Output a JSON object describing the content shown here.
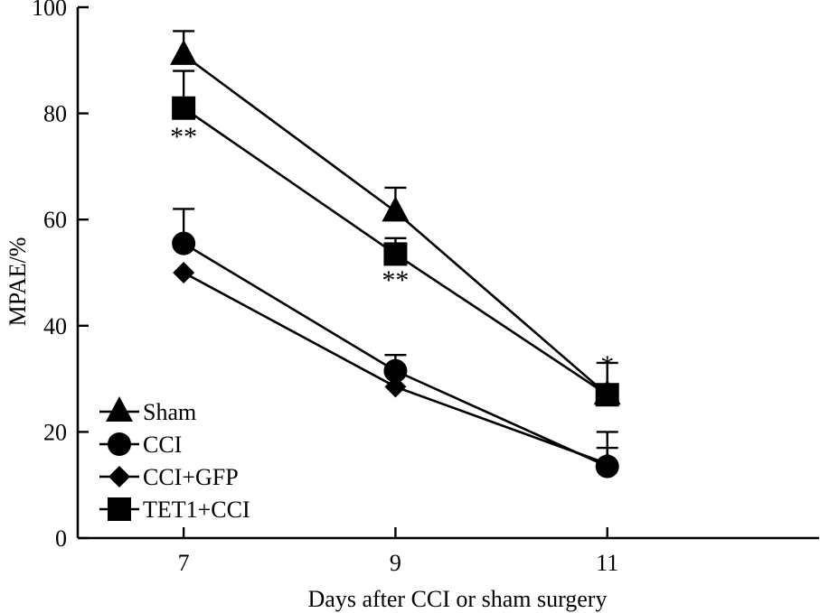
{
  "chart_data": {
    "type": "line",
    "title": "",
    "xlabel": "Days after CCI or sham surgery",
    "ylabel": "MPAE/%",
    "x": [
      7,
      9,
      11
    ],
    "x_tick_labels": [
      "7",
      "9",
      "11"
    ],
    "xlim": [
      6,
      13
    ],
    "ylim": [
      0,
      100
    ],
    "y_ticks": [
      0,
      20,
      40,
      60,
      80,
      100
    ],
    "y_tick_labels": [
      "0",
      "20",
      "40",
      "60",
      "80",
      "100"
    ],
    "grid": false,
    "legend_position": "bottom-left",
    "series": [
      {
        "name": "Sham",
        "marker": "triangle",
        "values": [
          91,
          61.5,
          27
        ],
        "error_upper": [
          4.5,
          4.5,
          0
        ]
      },
      {
        "name": "CCI",
        "marker": "circle",
        "values": [
          55.5,
          31.5,
          13.5
        ],
        "error_upper": [
          6.5,
          3,
          6.5
        ]
      },
      {
        "name": "CCI+GFP",
        "marker": "diamond",
        "values": [
          50,
          28.5,
          14
        ],
        "error_upper": [
          0,
          0,
          3
        ]
      },
      {
        "name": "TET1+CCI",
        "marker": "square",
        "values": [
          81,
          53.5,
          27
        ],
        "error_upper": [
          7,
          3,
          6
        ]
      }
    ],
    "annotations": [
      {
        "x": 7,
        "y": 77,
        "text": "**"
      },
      {
        "x": 9,
        "y": 50,
        "text": "**"
      },
      {
        "x": 11,
        "y": 34,
        "text": "*"
      }
    ]
  }
}
